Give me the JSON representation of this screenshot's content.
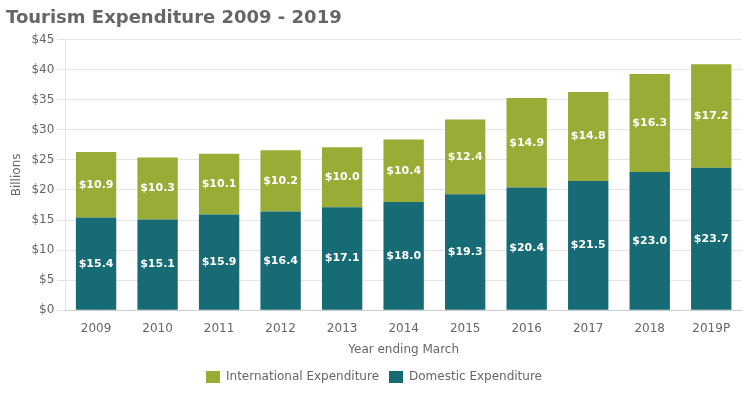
{
  "chart_data": {
    "type": "bar",
    "title": "Tourism Expenditure 2009 - 2019",
    "xlabel": "Year ending March",
    "ylabel": "Billions",
    "categories": [
      "2009",
      "2010",
      "2011",
      "2012",
      "2013",
      "2014",
      "2015",
      "2016",
      "2017",
      "2018",
      "2019P"
    ],
    "series": [
      {
        "name": "Domestic Expenditure",
        "color": "#176b75",
        "values": [
          15.4,
          15.1,
          15.9,
          16.4,
          17.1,
          18.0,
          19.3,
          20.4,
          21.5,
          23.0,
          23.7
        ],
        "value_labels": [
          "$15.4",
          "$15.1",
          "$15.9",
          "$16.4",
          "$17.1",
          "$18.0",
          "$19.3",
          "$20.4",
          "$21.5",
          "$23.0",
          "$23.7"
        ]
      },
      {
        "name": "International Expenditure",
        "color": "#99ac35",
        "values": [
          10.9,
          10.3,
          10.1,
          10.2,
          10.0,
          10.4,
          12.4,
          14.9,
          14.8,
          16.3,
          17.2
        ],
        "value_labels": [
          "$10.9",
          "$10.3",
          "$10.1",
          "$10.2",
          "$10.0",
          "$10.4",
          "$12.4",
          "$14.9",
          "$14.8",
          "$16.3",
          "$17.2"
        ]
      }
    ],
    "stacked": true,
    "data_labels": true,
    "ylim": [
      0,
      45
    ],
    "yticks": [
      {
        "value": 0,
        "label": "$0"
      },
      {
        "value": 5,
        "label": "$5"
      },
      {
        "value": 10,
        "label": "$10"
      },
      {
        "value": 15,
        "label": "$15"
      },
      {
        "value": 20,
        "label": "$20"
      },
      {
        "value": 25,
        "label": "$25"
      },
      {
        "value": 30,
        "label": "$30"
      },
      {
        "value": 35,
        "label": "$35"
      },
      {
        "value": 40,
        "label": "$40"
      },
      {
        "value": 45,
        "label": "$45"
      }
    ],
    "grid": true,
    "legend": "bottom"
  }
}
